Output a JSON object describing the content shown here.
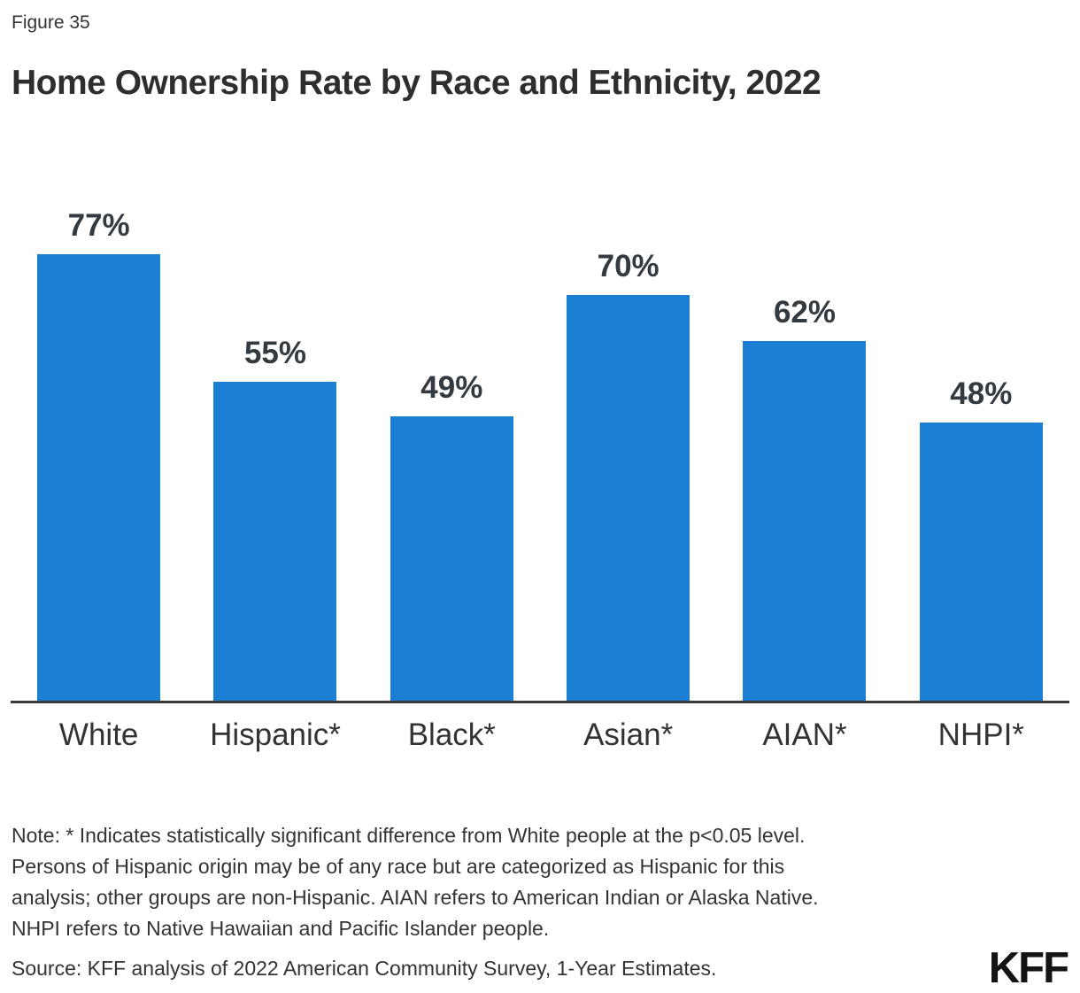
{
  "figure_label": "Figure 35",
  "title": "Home Ownership Rate by Race and Ethnicity, 2022",
  "note_lines": [
    "Note: * Indicates statistically significant difference from White people at the p<0.05 level.",
    "Persons of Hispanic origin may be of any race but are categorized as Hispanic for this",
    "analysis; other groups are non-Hispanic. AIAN refers to American Indian or Alaska Native.",
    "NHPI refers to Native Hawaiian and Pacific Islander people."
  ],
  "source": "Source: KFF analysis of 2022 American Community Survey, 1-Year Estimates.",
  "logo_text": "KFF",
  "colors": {
    "bar": "#1B80D3",
    "axis": "#3B3B3B",
    "text": "#333333"
  },
  "chart_data": {
    "type": "bar",
    "title": "Home Ownership Rate by Race and Ethnicity, 2022",
    "categories": [
      "White",
      "Hispanic*",
      "Black*",
      "Asian*",
      "AIAN*",
      "NHPI*"
    ],
    "values": [
      77,
      55,
      49,
      70,
      62,
      48
    ],
    "value_labels": [
      "77%",
      "55%",
      "49%",
      "70%",
      "62%",
      "48%"
    ],
    "xlabel": "",
    "ylabel": "",
    "ylim": [
      0,
      80
    ],
    "grid": false,
    "legend": false,
    "bar_color": "#1B80D3"
  }
}
